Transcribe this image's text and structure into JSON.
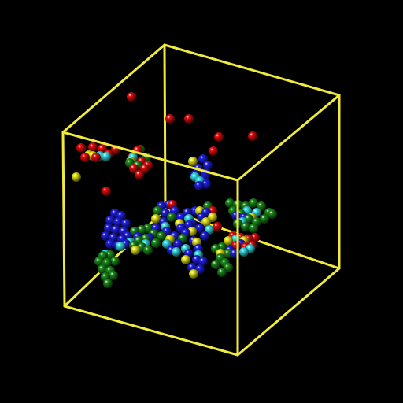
{
  "scene": {
    "background_color": "#000000",
    "box_color": "#f0ea3c",
    "atom_colors": {
      "red": "#e80c0c",
      "blue": "#2020e8",
      "green": "#1c8c1c",
      "cyan": "#38e0e8",
      "yellow": "#eaea18"
    }
  }
}
